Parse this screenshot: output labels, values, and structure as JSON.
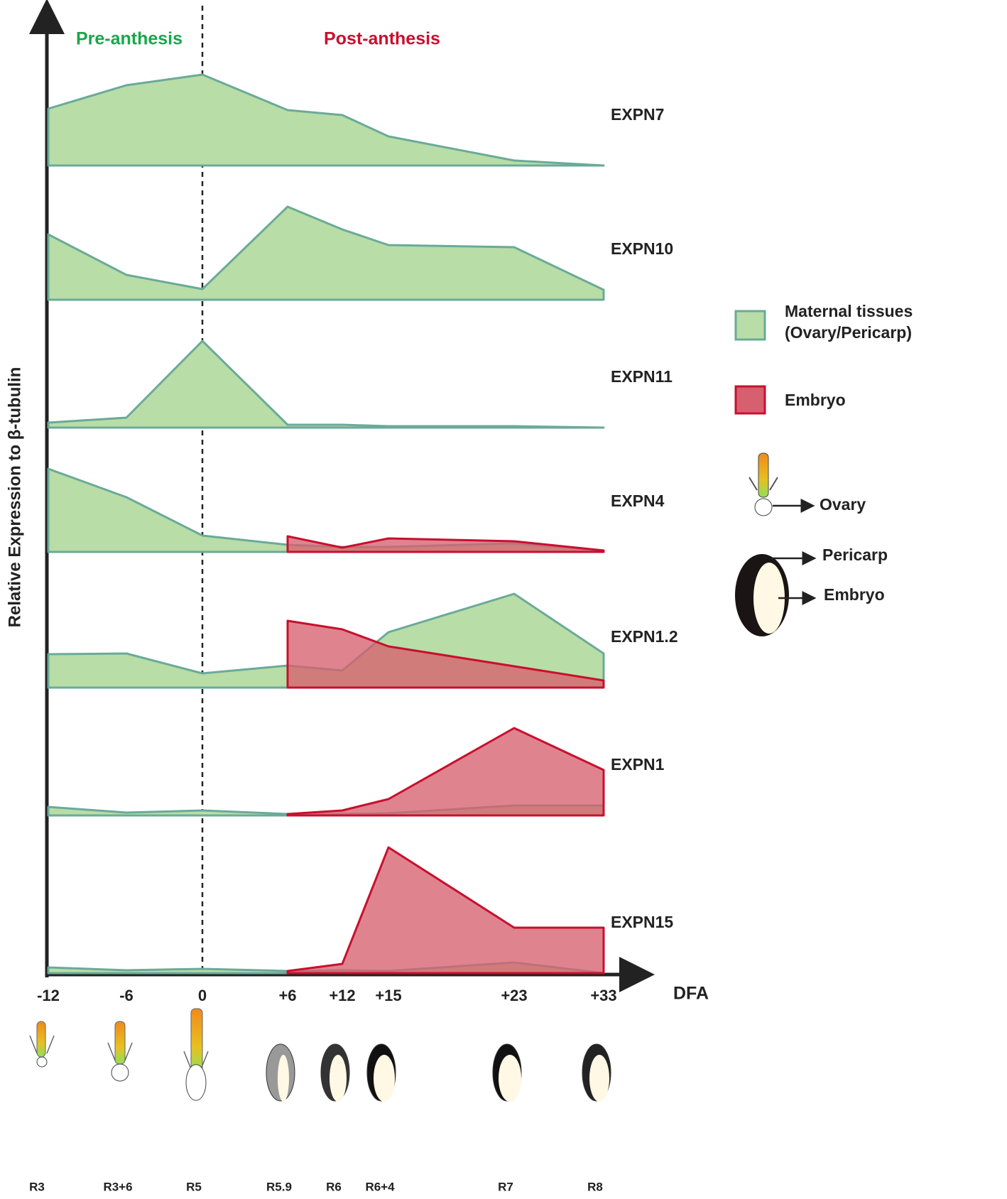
{
  "chart_data": {
    "type": "area",
    "y_label": "Relative Expression to β-tubulin",
    "x_label": "DFA",
    "annotations": [
      {
        "text": "Pre-anthesis",
        "color": "#1aa64a"
      },
      {
        "text": "Post-anthesis",
        "color": "#c8102e"
      }
    ],
    "categories": [
      "-12",
      "-6",
      "0",
      "+6",
      "+12",
      "+15",
      "+23",
      "+33"
    ],
    "stages": [
      "R3",
      "R3+6",
      "R5",
      "R5.9",
      "R6",
      "R6+4",
      "R7",
      "R8"
    ],
    "ylim": [
      0,
      200
    ],
    "diagram_labels": [
      "Ovary",
      "Pericarp",
      "Embryo"
    ],
    "panels": [
      {
        "name": "EXPN7",
        "series": [
          {
            "name": "Maternal tissues (Ovary/Pericarp)",
            "color": "#b9dda6",
            "values": [
              80,
              113,
              128,
              78,
              71,
              41,
              7,
              0
            ]
          }
        ]
      },
      {
        "name": "EXPN10",
        "series": [
          {
            "name": "Maternal tissues (Ovary/Pericarp)",
            "color": "#b9dda6",
            "values": [
              92,
              35,
              15,
              131,
              99,
              77,
              74,
              14
            ]
          }
        ]
      },
      {
        "name": "EXPN11",
        "series": [
          {
            "name": "Maternal tissues (Ovary/Pericarp)",
            "color": "#b9dda6",
            "values": [
              7,
              14,
              122,
              4,
              4,
              2,
              2,
              0
            ]
          }
        ]
      },
      {
        "name": "EXPN4",
        "series": [
          {
            "name": "Maternal tissues (Ovary/Pericarp)",
            "color": "#b9dda6",
            "values": [
              117,
              77,
              23,
              10,
              7,
              7,
              12,
              2
            ]
          },
          {
            "name": "Embryo",
            "color": "#d6606f",
            "values": [
              null,
              null,
              null,
              22,
              6,
              19,
              15,
              2
            ]
          }
        ]
      },
      {
        "name": "EXPN1.2",
        "series": [
          {
            "name": "Maternal tissues (Ovary/Pericarp)",
            "color": "#b9dda6",
            "values": [
              47,
              48,
              20,
              31,
              24,
              78,
              132,
              48
            ]
          },
          {
            "name": "Embryo",
            "color": "#d6606f",
            "values": [
              null,
              null,
              null,
              94,
              82,
              58,
              30,
              10
            ]
          }
        ]
      },
      {
        "name": "EXPN1",
        "series": [
          {
            "name": "Maternal tissues (Ovary/Pericarp)",
            "color": "#b9dda6",
            "values": [
              12,
              4,
              7,
              2,
              2,
              3,
              14,
              14
            ]
          },
          {
            "name": "Embryo",
            "color": "#d6606f",
            "values": [
              null,
              null,
              null,
              2,
              7,
              23,
              123,
              64
            ]
          }
        ]
      },
      {
        "name": "EXPN15",
        "series": [
          {
            "name": "Maternal tissues (Ovary/Pericarp)",
            "color": "#b9dda6",
            "values": [
              8,
              4,
              6,
              3,
              4,
              3,
              15,
              0
            ]
          },
          {
            "name": "Embryo",
            "color": "#d6606f",
            "values": [
              null,
              null,
              null,
              3,
              13,
              177,
              64,
              64
            ]
          }
        ]
      }
    ]
  }
}
